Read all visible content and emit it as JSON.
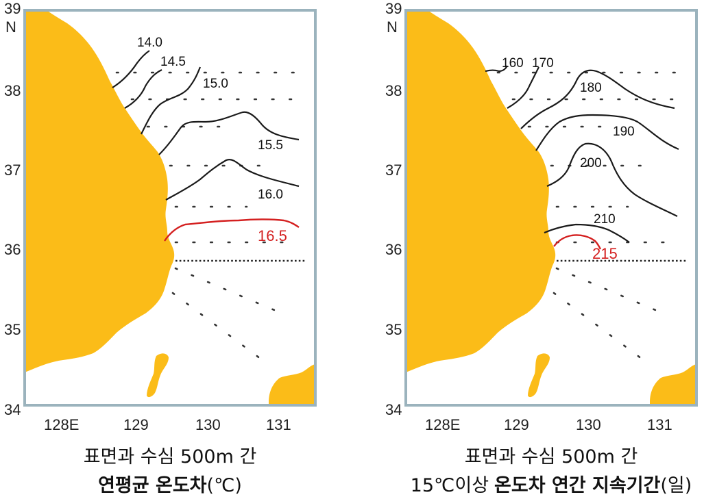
{
  "panels": [
    {
      "axes": {
        "y_ticks": [
          "39",
          "38",
          "37",
          "36",
          "35",
          "34"
        ],
        "y_unit": "N",
        "x_ticks": [
          "128E",
          "129",
          "130",
          "131"
        ]
      },
      "contours": [
        "14.0",
        "14.5",
        "15.0",
        "15.5",
        "16.0",
        "16.5"
      ],
      "highlight_contour": "16.5",
      "caption_line1": "표면과 수심 500m 간",
      "caption_line2_bold": "연평균 온도차",
      "caption_line2_normal": "(℃)"
    },
    {
      "axes": {
        "y_ticks": [
          "39",
          "38",
          "37",
          "36",
          "35",
          "34"
        ],
        "y_unit": "N",
        "x_ticks": [
          "128E",
          "129",
          "130",
          "131"
        ]
      },
      "contours": [
        "160",
        "170",
        "180",
        "190",
        "200",
        "210",
        "215"
      ],
      "highlight_contour": "215",
      "caption_line1": "표면과 수심 500m 간",
      "caption_line2_prefix": "15℃이상",
      "caption_line2_bold": "온도차 연간 지속기간",
      "caption_line2_suffix": "(일)"
    }
  ],
  "colors": {
    "land": "#fbbc18",
    "frame": "#9bb3bd",
    "contour": "#1a1a1a",
    "highlight": "#d42020"
  }
}
